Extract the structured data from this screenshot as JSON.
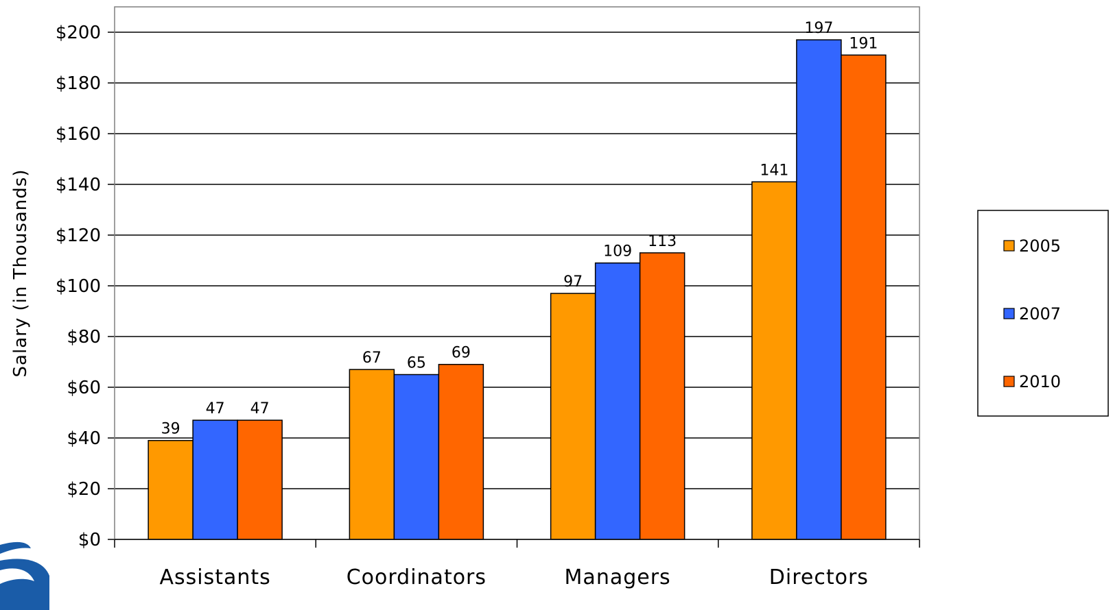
{
  "chart_data": {
    "type": "bar",
    "title": "",
    "xlabel": "",
    "ylabel": "Salary (in Thousands)",
    "ylim": [
      0,
      200
    ],
    "yticks": [
      0,
      20,
      40,
      60,
      80,
      100,
      120,
      140,
      160,
      180,
      200
    ],
    "ytick_labels": [
      "$0",
      "$20",
      "$40",
      "$60",
      "$80",
      "$100",
      "$120",
      "$140",
      "$160",
      "$180",
      "$200"
    ],
    "categories": [
      "Assistants",
      "Coordinators",
      "Managers",
      "Directors"
    ],
    "series": [
      {
        "name": "2005",
        "color": "#FF9900",
        "values": [
          39,
          67,
          97,
          141
        ]
      },
      {
        "name": "2007",
        "color": "#3366FF",
        "values": [
          47,
          65,
          109,
          197
        ]
      },
      {
        "name": "2010",
        "color": "#FF6600",
        "values": [
          47,
          69,
          113,
          191
        ]
      }
    ],
    "grid": true,
    "legend_position": "right",
    "data_labels": true
  },
  "logo": {
    "name": "swoosh-logo",
    "color": "#1a5ca8"
  }
}
